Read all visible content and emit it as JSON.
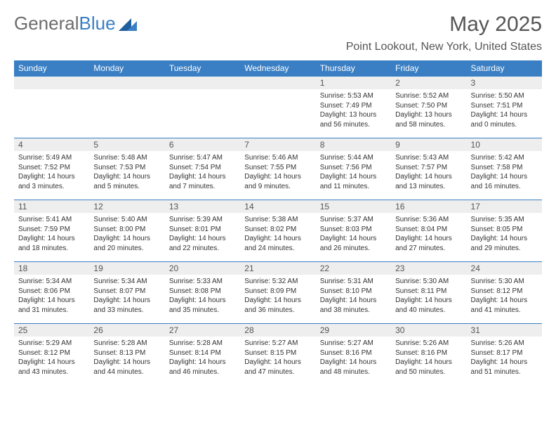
{
  "brand": {
    "part1": "General",
    "part2": "Blue"
  },
  "title": "May 2025",
  "location": "Point Lookout, New York, United States",
  "colors": {
    "header_bg": "#3a7fc4",
    "header_text": "#ffffff",
    "cell_border": "#3a7fc4",
    "daynum_bg": "#eeeeee",
    "text": "#333333",
    "muted": "#555555",
    "background": "#ffffff"
  },
  "typography": {
    "title_fontsize": 30,
    "location_fontsize": 16,
    "day_header_fontsize": 12,
    "daynum_fontsize": 12,
    "detail_fontsize": 10
  },
  "days_of_week": [
    "Sunday",
    "Monday",
    "Tuesday",
    "Wednesday",
    "Thursday",
    "Friday",
    "Saturday"
  ],
  "grid": [
    [
      {
        "n": "",
        "sunrise": "",
        "sunset": "",
        "daylight": ""
      },
      {
        "n": "",
        "sunrise": "",
        "sunset": "",
        "daylight": ""
      },
      {
        "n": "",
        "sunrise": "",
        "sunset": "",
        "daylight": ""
      },
      {
        "n": "",
        "sunrise": "",
        "sunset": "",
        "daylight": ""
      },
      {
        "n": "1",
        "sunrise": "Sunrise: 5:53 AM",
        "sunset": "Sunset: 7:49 PM",
        "daylight": "Daylight: 13 hours and 56 minutes."
      },
      {
        "n": "2",
        "sunrise": "Sunrise: 5:52 AM",
        "sunset": "Sunset: 7:50 PM",
        "daylight": "Daylight: 13 hours and 58 minutes."
      },
      {
        "n": "3",
        "sunrise": "Sunrise: 5:50 AM",
        "sunset": "Sunset: 7:51 PM",
        "daylight": "Daylight: 14 hours and 0 minutes."
      }
    ],
    [
      {
        "n": "4",
        "sunrise": "Sunrise: 5:49 AM",
        "sunset": "Sunset: 7:52 PM",
        "daylight": "Daylight: 14 hours and 3 minutes."
      },
      {
        "n": "5",
        "sunrise": "Sunrise: 5:48 AM",
        "sunset": "Sunset: 7:53 PM",
        "daylight": "Daylight: 14 hours and 5 minutes."
      },
      {
        "n": "6",
        "sunrise": "Sunrise: 5:47 AM",
        "sunset": "Sunset: 7:54 PM",
        "daylight": "Daylight: 14 hours and 7 minutes."
      },
      {
        "n": "7",
        "sunrise": "Sunrise: 5:46 AM",
        "sunset": "Sunset: 7:55 PM",
        "daylight": "Daylight: 14 hours and 9 minutes."
      },
      {
        "n": "8",
        "sunrise": "Sunrise: 5:44 AM",
        "sunset": "Sunset: 7:56 PM",
        "daylight": "Daylight: 14 hours and 11 minutes."
      },
      {
        "n": "9",
        "sunrise": "Sunrise: 5:43 AM",
        "sunset": "Sunset: 7:57 PM",
        "daylight": "Daylight: 14 hours and 13 minutes."
      },
      {
        "n": "10",
        "sunrise": "Sunrise: 5:42 AM",
        "sunset": "Sunset: 7:58 PM",
        "daylight": "Daylight: 14 hours and 16 minutes."
      }
    ],
    [
      {
        "n": "11",
        "sunrise": "Sunrise: 5:41 AM",
        "sunset": "Sunset: 7:59 PM",
        "daylight": "Daylight: 14 hours and 18 minutes."
      },
      {
        "n": "12",
        "sunrise": "Sunrise: 5:40 AM",
        "sunset": "Sunset: 8:00 PM",
        "daylight": "Daylight: 14 hours and 20 minutes."
      },
      {
        "n": "13",
        "sunrise": "Sunrise: 5:39 AM",
        "sunset": "Sunset: 8:01 PM",
        "daylight": "Daylight: 14 hours and 22 minutes."
      },
      {
        "n": "14",
        "sunrise": "Sunrise: 5:38 AM",
        "sunset": "Sunset: 8:02 PM",
        "daylight": "Daylight: 14 hours and 24 minutes."
      },
      {
        "n": "15",
        "sunrise": "Sunrise: 5:37 AM",
        "sunset": "Sunset: 8:03 PM",
        "daylight": "Daylight: 14 hours and 26 minutes."
      },
      {
        "n": "16",
        "sunrise": "Sunrise: 5:36 AM",
        "sunset": "Sunset: 8:04 PM",
        "daylight": "Daylight: 14 hours and 27 minutes."
      },
      {
        "n": "17",
        "sunrise": "Sunrise: 5:35 AM",
        "sunset": "Sunset: 8:05 PM",
        "daylight": "Daylight: 14 hours and 29 minutes."
      }
    ],
    [
      {
        "n": "18",
        "sunrise": "Sunrise: 5:34 AM",
        "sunset": "Sunset: 8:06 PM",
        "daylight": "Daylight: 14 hours and 31 minutes."
      },
      {
        "n": "19",
        "sunrise": "Sunrise: 5:34 AM",
        "sunset": "Sunset: 8:07 PM",
        "daylight": "Daylight: 14 hours and 33 minutes."
      },
      {
        "n": "20",
        "sunrise": "Sunrise: 5:33 AM",
        "sunset": "Sunset: 8:08 PM",
        "daylight": "Daylight: 14 hours and 35 minutes."
      },
      {
        "n": "21",
        "sunrise": "Sunrise: 5:32 AM",
        "sunset": "Sunset: 8:09 PM",
        "daylight": "Daylight: 14 hours and 36 minutes."
      },
      {
        "n": "22",
        "sunrise": "Sunrise: 5:31 AM",
        "sunset": "Sunset: 8:10 PM",
        "daylight": "Daylight: 14 hours and 38 minutes."
      },
      {
        "n": "23",
        "sunrise": "Sunrise: 5:30 AM",
        "sunset": "Sunset: 8:11 PM",
        "daylight": "Daylight: 14 hours and 40 minutes."
      },
      {
        "n": "24",
        "sunrise": "Sunrise: 5:30 AM",
        "sunset": "Sunset: 8:12 PM",
        "daylight": "Daylight: 14 hours and 41 minutes."
      }
    ],
    [
      {
        "n": "25",
        "sunrise": "Sunrise: 5:29 AM",
        "sunset": "Sunset: 8:12 PM",
        "daylight": "Daylight: 14 hours and 43 minutes."
      },
      {
        "n": "26",
        "sunrise": "Sunrise: 5:28 AM",
        "sunset": "Sunset: 8:13 PM",
        "daylight": "Daylight: 14 hours and 44 minutes."
      },
      {
        "n": "27",
        "sunrise": "Sunrise: 5:28 AM",
        "sunset": "Sunset: 8:14 PM",
        "daylight": "Daylight: 14 hours and 46 minutes."
      },
      {
        "n": "28",
        "sunrise": "Sunrise: 5:27 AM",
        "sunset": "Sunset: 8:15 PM",
        "daylight": "Daylight: 14 hours and 47 minutes."
      },
      {
        "n": "29",
        "sunrise": "Sunrise: 5:27 AM",
        "sunset": "Sunset: 8:16 PM",
        "daylight": "Daylight: 14 hours and 48 minutes."
      },
      {
        "n": "30",
        "sunrise": "Sunrise: 5:26 AM",
        "sunset": "Sunset: 8:16 PM",
        "daylight": "Daylight: 14 hours and 50 minutes."
      },
      {
        "n": "31",
        "sunrise": "Sunrise: 5:26 AM",
        "sunset": "Sunset: 8:17 PM",
        "daylight": "Daylight: 14 hours and 51 minutes."
      }
    ]
  ]
}
